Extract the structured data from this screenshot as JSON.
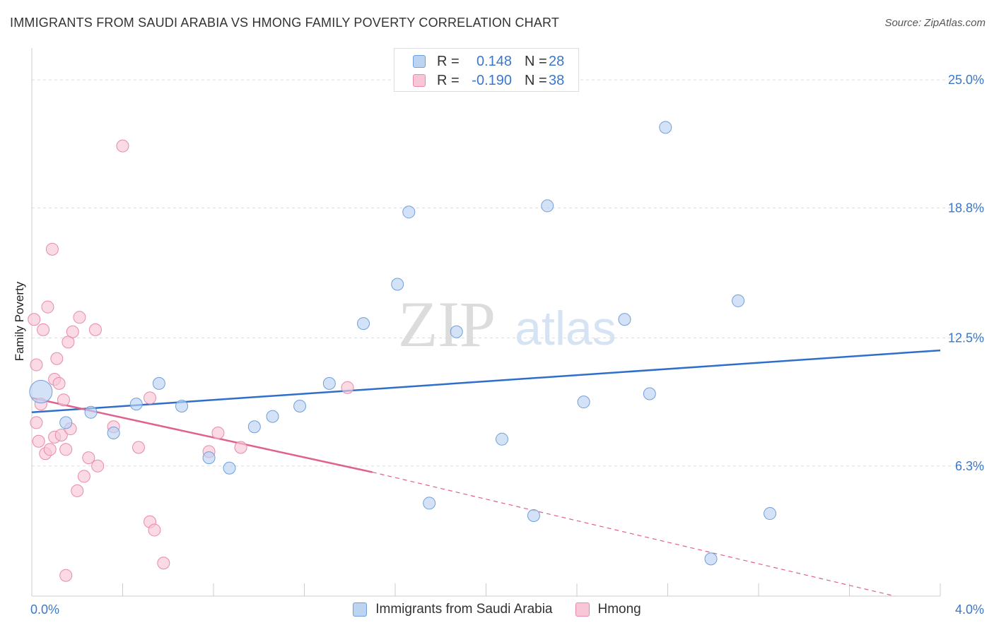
{
  "header": {
    "title": "IMMIGRANTS FROM SAUDI ARABIA VS HMONG FAMILY POVERTY CORRELATION CHART",
    "source": "Source: ZipAtlas.com"
  },
  "watermark": {
    "zip": "ZIP",
    "atlas": "atlas"
  },
  "stats_legend": [
    {
      "r_label": "R =",
      "r_value": "0.148",
      "n_label": "N =",
      "n_value": "28"
    },
    {
      "r_label": "R =",
      "r_value": "-0.190",
      "n_label": "N =",
      "n_value": "38"
    }
  ],
  "chart_data": {
    "type": "scatter",
    "title": "IMMIGRANTS FROM SAUDI ARABIA VS HMONG FAMILY POVERTY CORRELATION CHART",
    "xlabel": "",
    "ylabel": "Family Poverty",
    "xlim": [
      0,
      4.0
    ],
    "ylim": [
      0,
      26.2
    ],
    "x_tick_labels": [
      "0.0%",
      "4.0%"
    ],
    "y_ticks": [
      6.3,
      12.5,
      18.8,
      25.0
    ],
    "y_tick_labels": [
      "6.3%",
      "12.5%",
      "18.8%",
      "25.0%"
    ],
    "grid": true,
    "legend_position": "bottom",
    "series": [
      {
        "name": "Immigrants from Saudi Arabia",
        "color": "#6f9fdb",
        "fill": "#bcd3f2",
        "trend": {
          "x": [
            0.0,
            4.0
          ],
          "y": [
            8.9,
            11.9
          ],
          "color": "#2f6fcb"
        },
        "points": [
          {
            "x": 0.04,
            "y": 9.9,
            "big": true
          },
          {
            "x": 0.15,
            "y": 8.4
          },
          {
            "x": 0.26,
            "y": 8.9
          },
          {
            "x": 0.36,
            "y": 7.9
          },
          {
            "x": 0.46,
            "y": 9.3
          },
          {
            "x": 0.56,
            "y": 10.3
          },
          {
            "x": 0.66,
            "y": 9.2
          },
          {
            "x": 0.78,
            "y": 6.7
          },
          {
            "x": 0.87,
            "y": 6.2
          },
          {
            "x": 0.98,
            "y": 8.2
          },
          {
            "x": 1.06,
            "y": 8.7
          },
          {
            "x": 1.18,
            "y": 9.2
          },
          {
            "x": 1.31,
            "y": 10.3
          },
          {
            "x": 1.46,
            "y": 13.2
          },
          {
            "x": 1.61,
            "y": 15.1
          },
          {
            "x": 1.66,
            "y": 18.6
          },
          {
            "x": 1.75,
            "y": 4.5
          },
          {
            "x": 1.87,
            "y": 12.8
          },
          {
            "x": 2.07,
            "y": 7.6
          },
          {
            "x": 2.21,
            "y": 3.9
          },
          {
            "x": 2.27,
            "y": 18.9
          },
          {
            "x": 2.43,
            "y": 9.4
          },
          {
            "x": 2.61,
            "y": 13.4
          },
          {
            "x": 2.72,
            "y": 9.8
          },
          {
            "x": 2.79,
            "y": 22.7
          },
          {
            "x": 2.99,
            "y": 1.8
          },
          {
            "x": 3.11,
            "y": 14.3
          },
          {
            "x": 3.25,
            "y": 4.0
          }
        ]
      },
      {
        "name": "Hmong",
        "color": "#e88aab",
        "fill": "#f8c6d7",
        "trend": {
          "x": [
            0.0,
            1.5
          ],
          "y": [
            9.6,
            6.0
          ],
          "dash_to_x": 3.8,
          "dash_to_y": 0.0,
          "color": "#e0608f"
        },
        "points": [
          {
            "x": 0.01,
            "y": 13.4
          },
          {
            "x": 0.02,
            "y": 11.2
          },
          {
            "x": 0.02,
            "y": 8.4
          },
          {
            "x": 0.03,
            "y": 7.5
          },
          {
            "x": 0.04,
            "y": 9.3
          },
          {
            "x": 0.05,
            "y": 12.9
          },
          {
            "x": 0.06,
            "y": 6.9
          },
          {
            "x": 0.07,
            "y": 14.0
          },
          {
            "x": 0.08,
            "y": 7.1
          },
          {
            "x": 0.09,
            "y": 16.8
          },
          {
            "x": 0.1,
            "y": 7.7
          },
          {
            "x": 0.1,
            "y": 10.5
          },
          {
            "x": 0.11,
            "y": 11.5
          },
          {
            "x": 0.12,
            "y": 10.3
          },
          {
            "x": 0.13,
            "y": 7.8
          },
          {
            "x": 0.14,
            "y": 9.5
          },
          {
            "x": 0.15,
            "y": 7.1
          },
          {
            "x": 0.15,
            "y": 1.0
          },
          {
            "x": 0.16,
            "y": 12.3
          },
          {
            "x": 0.17,
            "y": 8.1
          },
          {
            "x": 0.18,
            "y": 12.8
          },
          {
            "x": 0.2,
            "y": 5.1
          },
          {
            "x": 0.21,
            "y": 13.5
          },
          {
            "x": 0.23,
            "y": 5.8
          },
          {
            "x": 0.25,
            "y": 6.7
          },
          {
            "x": 0.28,
            "y": 12.9
          },
          {
            "x": 0.29,
            "y": 6.3
          },
          {
            "x": 0.36,
            "y": 8.2
          },
          {
            "x": 0.4,
            "y": 21.8
          },
          {
            "x": 0.47,
            "y": 7.2
          },
          {
            "x": 0.52,
            "y": 3.6
          },
          {
            "x": 0.52,
            "y": 9.6
          },
          {
            "x": 0.54,
            "y": 3.2
          },
          {
            "x": 0.58,
            "y": 1.6
          },
          {
            "x": 0.78,
            "y": 7.0
          },
          {
            "x": 0.82,
            "y": 7.9
          },
          {
            "x": 0.92,
            "y": 7.2
          },
          {
            "x": 1.39,
            "y": 10.1
          }
        ]
      }
    ]
  }
}
